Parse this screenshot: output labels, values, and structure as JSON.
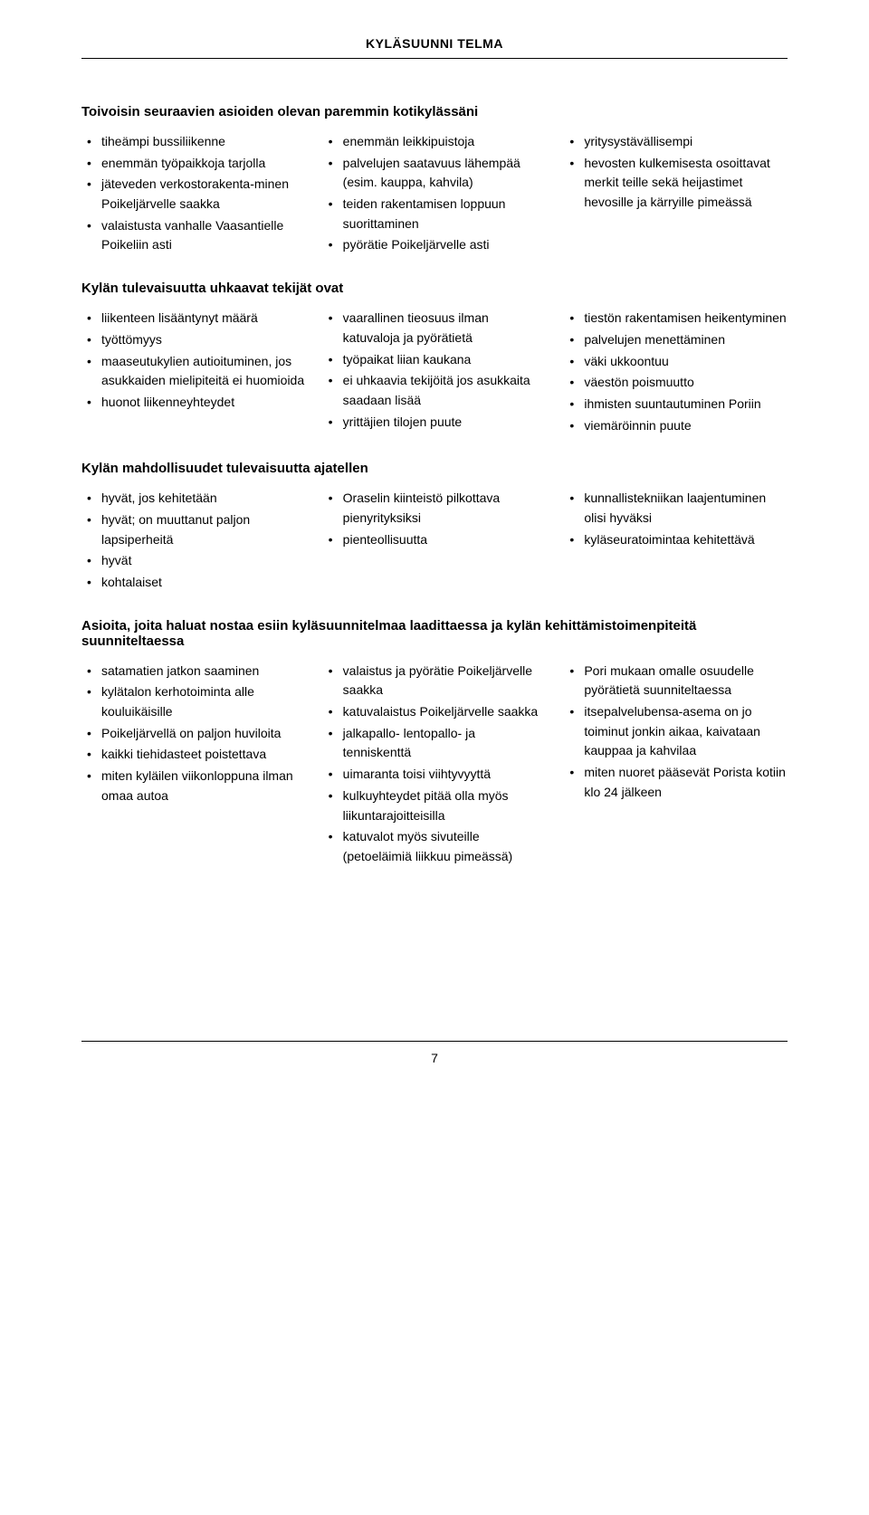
{
  "header": {
    "title": "KYLÄSUUNNI TELMA"
  },
  "sections": [
    {
      "title": "Toivoisin seuraavien asioiden olevan paremmin kotikylässäni",
      "columns": [
        [
          "tiheämpi bussiliikenne",
          "enemmän työpaikkoja tarjolla",
          "jäteveden verkostorakenta-minen Poikeljärvelle saakka",
          "valaistusta vanhalle Vaasantielle Poikeliin asti"
        ],
        [
          "enemmän leikkipuistoja",
          "palvelujen saatavuus lähempää (esim. kauppa, kahvila)",
          "teiden rakentamisen loppuun suorittaminen",
          "pyörätie Poikeljärvelle asti"
        ],
        [
          "yritysystävällisempi",
          "hevosten kulkemisesta osoittavat merkit teille sekä heijastimet hevosille ja kärryille pimeässä"
        ]
      ]
    },
    {
      "title": "Kylän tulevaisuutta uhkaavat tekijät ovat",
      "columns": [
        [
          "liikenteen lisääntynyt määrä",
          "työttömyys",
          "maaseutukylien autioituminen, jos asukkaiden mielipiteitä ei huomioida",
          "huonot liikenneyhteydet"
        ],
        [
          "vaarallinen tieosuus ilman katuvaloja ja pyörätietä",
          "työpaikat liian kaukana",
          "ei uhkaavia tekijöitä jos asukkaita saadaan lisää",
          "yrittäjien tilojen puute"
        ],
        [
          "tiestön rakentamisen heikentyminen",
          "palvelujen menettäminen",
          "väki ukkoontuu",
          "väestön poismuutto",
          "ihmisten suuntautuminen Poriin",
          "viemäröinnin puute"
        ]
      ]
    },
    {
      "title": "Kylän mahdollisuudet tulevaisuutta ajatellen",
      "columns": [
        [
          "hyvät, jos kehitetään",
          "hyvät; on muuttanut paljon lapsiperheitä",
          "hyvät",
          "kohtalaiset"
        ],
        [
          "Oraselin kiinteistö pilkottava pienyrityksiksi",
          "pienteollisuutta"
        ],
        [
          "kunnallistekniikan laajentuminen olisi hyväksi",
          "kyläseuratoimintaa kehitettävä"
        ]
      ]
    },
    {
      "title": "Asioita, joita haluat nostaa esiin kyläsuunnitelmaa laadittaessa ja kylän kehittämistoimenpiteitä suunniteltaessa",
      "columns": [
        [
          "satamatien jatkon saaminen",
          "kylätalon kerhotoiminta alle kouluikäisille",
          "Poikeljärvellä on paljon huviloita",
          "kaikki tiehidasteet poistettava",
          "miten kyläilen viikonloppuna ilman omaa autoa"
        ],
        [
          "valaistus ja pyörätie Poikeljärvelle saakka",
          "katuvalaistus Poikeljärvelle saakka",
          "jalkapallo- lentopallo- ja tenniskenttä",
          "uimaranta toisi viihtyvyyttä",
          "kulkuyhteydet pitää olla myös liikuntarajoitteisilla",
          "katuvalot myös sivuteille (petoeläimiä liikkuu pimeässä)"
        ],
        [
          "Pori mukaan omalle osuudelle pyörätietä suunniteltaessa",
          "itsepalvelubensa-asema on jo toiminut jonkin aikaa, kaivataan kauppaa ja kahvilaa",
          "miten nuoret pääsevät Porista kotiin klo 24 jälkeen"
        ]
      ]
    }
  ],
  "footer": {
    "page": "7"
  }
}
